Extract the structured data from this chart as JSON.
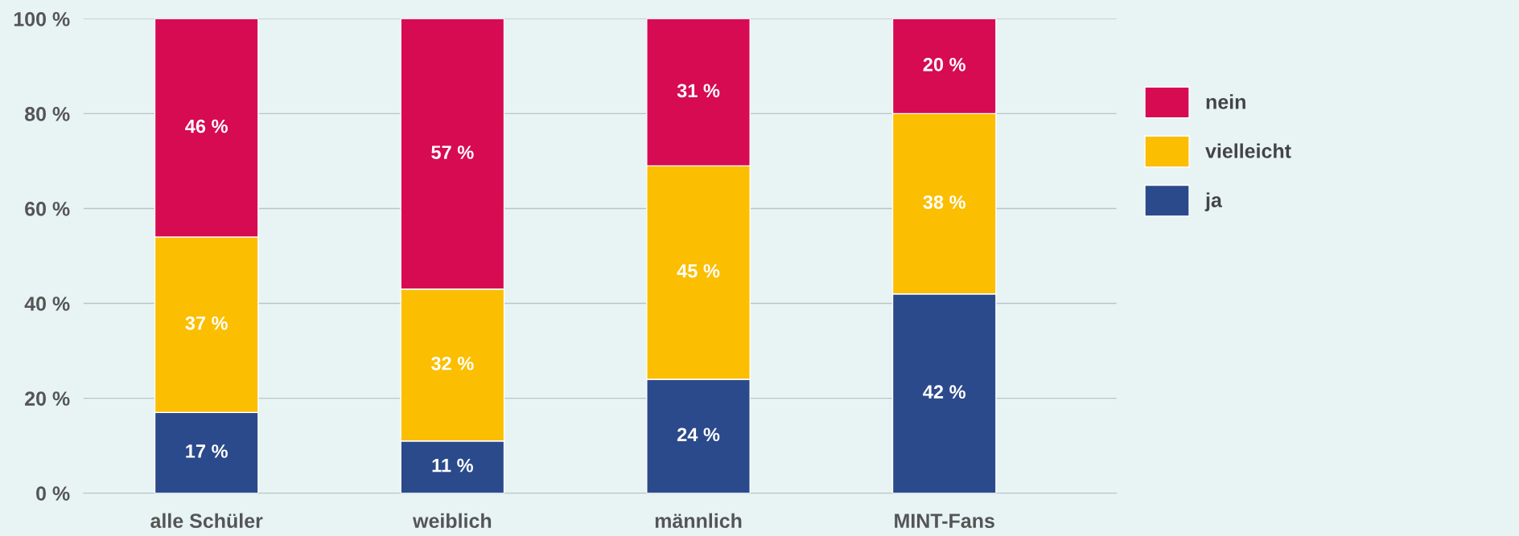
{
  "chart_data": {
    "type": "bar",
    "stacked": true,
    "categories": [
      "alle Schüler",
      "weiblich",
      "männlich",
      "MINT-Fans"
    ],
    "series": [
      {
        "name": "ja",
        "color": "#2b4a8b",
        "values": [
          17,
          11,
          24,
          42
        ],
        "value_labels": [
          "17 %",
          "11 %",
          "24 %",
          "42 %"
        ]
      },
      {
        "name": "vielleicht",
        "color": "#fbbe00",
        "values": [
          37,
          32,
          45,
          38
        ],
        "value_labels": [
          "37 %",
          "32 %",
          "45 %",
          "38 %"
        ]
      },
      {
        "name": "nein",
        "color": "#d60b52",
        "values": [
          46,
          57,
          31,
          20
        ],
        "value_labels": [
          "46 %",
          "57 %",
          "31 %",
          "20 %"
        ]
      }
    ],
    "ylim": [
      0,
      100
    ],
    "yticks": [
      {
        "value": 0,
        "label": "0 %"
      },
      {
        "value": 20,
        "label": "20 %"
      },
      {
        "value": 40,
        "label": "40 %"
      },
      {
        "value": 60,
        "label": "60 %"
      },
      {
        "value": 80,
        "label": "80 %"
      },
      {
        "value": 100,
        "label": "100 %"
      }
    ],
    "grid": "y",
    "legend": "right"
  }
}
